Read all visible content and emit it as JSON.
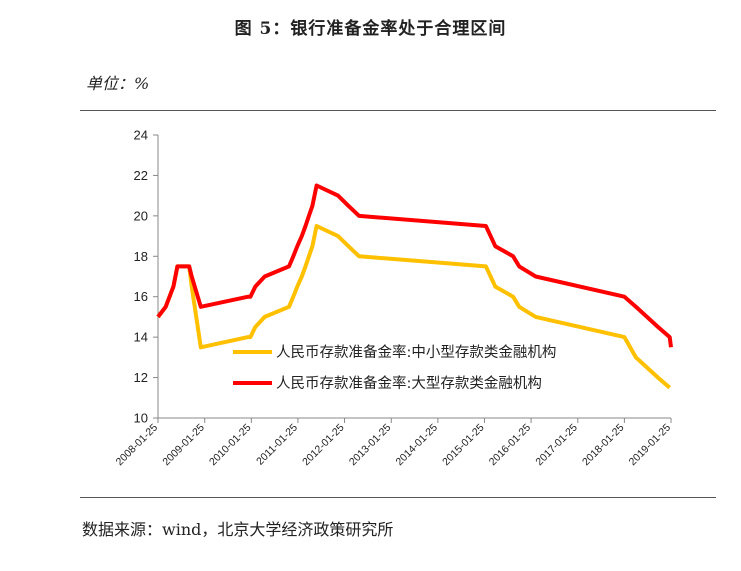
{
  "header": {
    "title": "图 5：银行准备金率处于合理区间",
    "unit": "单位：%"
  },
  "footer": {
    "source": "数据来源：wind，北京大学经济政策研究所"
  },
  "colors": {
    "small_medium": "#ffc000",
    "large": "#ff0000",
    "axis": "#888888"
  },
  "chart_data": {
    "type": "line",
    "title": "图 5：银行准备金率处于合理区间",
    "ylabel": "单位：%",
    "ylim": [
      10,
      24
    ],
    "yticks": [
      "10",
      "12",
      "14",
      "16",
      "18",
      "20",
      "22",
      "24"
    ],
    "xlim": [
      "2008-01-25",
      "2019-01-25"
    ],
    "xticks": [
      "2008-01-25",
      "2009-01-25",
      "2010-01-25",
      "2011-01-25",
      "2012-01-25",
      "2013-01-25",
      "2014-01-25",
      "2015-01-25",
      "2016-01-25",
      "2017-01-25",
      "2018-01-25",
      "2019-01-25"
    ],
    "legend_position": "center-right",
    "grid": false,
    "series": [
      {
        "name": "人民币存款准备金率:中小型存款类金融机构",
        "color": "#ffc000",
        "points": [
          [
            "2008-01-25",
            15.0
          ],
          [
            "2008-03-25",
            15.5
          ],
          [
            "2008-05-25",
            16.5
          ],
          [
            "2008-06-25",
            17.5
          ],
          [
            "2008-09-25",
            17.5
          ],
          [
            "2008-10-15",
            16.5
          ],
          [
            "2008-12-25",
            13.5
          ],
          [
            "2009-12-31",
            14.0
          ],
          [
            "2010-01-18",
            14.0
          ],
          [
            "2010-02-25",
            14.5
          ],
          [
            "2010-05-10",
            15.0
          ],
          [
            "2010-11-16",
            15.5
          ],
          [
            "2010-12-20",
            16.0
          ],
          [
            "2011-01-20",
            16.5
          ],
          [
            "2011-02-24",
            17.0
          ],
          [
            "2011-03-25",
            17.5
          ],
          [
            "2011-04-21",
            18.0
          ],
          [
            "2011-05-18",
            18.5
          ],
          [
            "2011-06-20",
            19.5
          ],
          [
            "2011-12-05",
            19.0
          ],
          [
            "2012-02-24",
            18.5
          ],
          [
            "2012-05-18",
            18.0
          ],
          [
            "2015-02-05",
            17.5
          ],
          [
            "2015-04-20",
            16.5
          ],
          [
            "2015-09-06",
            16.0
          ],
          [
            "2015-10-24",
            15.5
          ],
          [
            "2016-03-01",
            15.0
          ],
          [
            "2018-01-25",
            14.0
          ],
          [
            "2018-04-25",
            13.0
          ],
          [
            "2018-10-15",
            12.0
          ],
          [
            "2019-01-15",
            11.5
          ]
        ]
      },
      {
        "name": "人民币存款准备金率:大型存款类金融机构",
        "color": "#ff0000",
        "points": [
          [
            "2008-01-25",
            15.0
          ],
          [
            "2008-03-25",
            15.5
          ],
          [
            "2008-05-25",
            16.5
          ],
          [
            "2008-06-25",
            17.5
          ],
          [
            "2008-09-25",
            17.5
          ],
          [
            "2008-10-15",
            17.0
          ],
          [
            "2008-12-25",
            15.5
          ],
          [
            "2009-12-31",
            16.0
          ],
          [
            "2010-01-18",
            16.0
          ],
          [
            "2010-02-25",
            16.5
          ],
          [
            "2010-05-10",
            17.0
          ],
          [
            "2010-11-16",
            17.5
          ],
          [
            "2010-12-20",
            18.0
          ],
          [
            "2011-01-20",
            18.5
          ],
          [
            "2011-02-24",
            19.0
          ],
          [
            "2011-03-25",
            19.5
          ],
          [
            "2011-04-21",
            20.0
          ],
          [
            "2011-05-18",
            20.5
          ],
          [
            "2011-06-20",
            21.5
          ],
          [
            "2011-12-05",
            21.0
          ],
          [
            "2012-02-24",
            20.5
          ],
          [
            "2012-05-18",
            20.0
          ],
          [
            "2015-02-05",
            19.5
          ],
          [
            "2015-04-20",
            18.5
          ],
          [
            "2015-09-06",
            18.0
          ],
          [
            "2015-10-24",
            17.5
          ],
          [
            "2016-03-01",
            17.0
          ],
          [
            "2018-01-25",
            16.0
          ],
          [
            "2018-04-25",
            15.5
          ],
          [
            "2018-10-15",
            14.5
          ],
          [
            "2019-01-15",
            14.0
          ],
          [
            "2019-01-25",
            13.5
          ]
        ]
      }
    ]
  }
}
